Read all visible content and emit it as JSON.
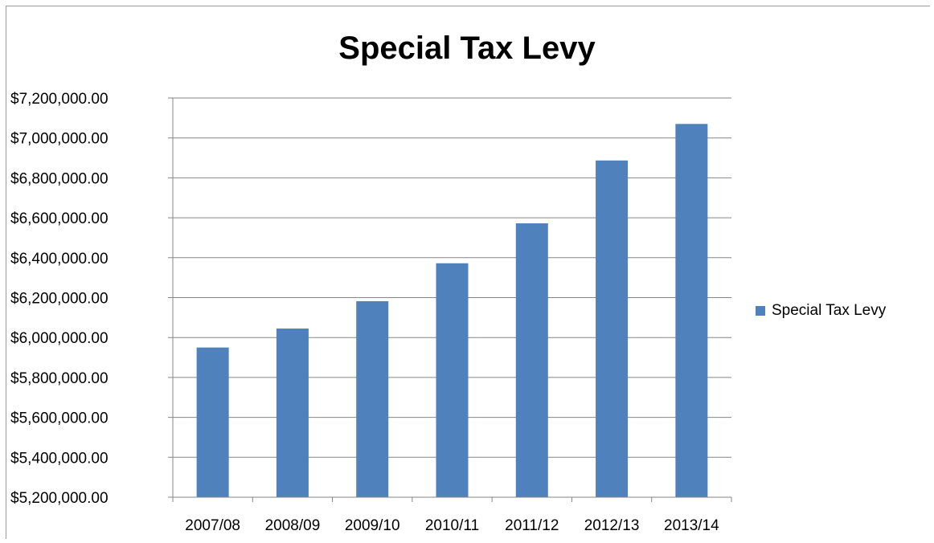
{
  "chart_data": {
    "type": "bar",
    "title": "Special Tax Levy",
    "categories": [
      "2007/08",
      "2008/09",
      "2009/10",
      "2010/11",
      "2011/12",
      "2012/13",
      "2013/14"
    ],
    "series": [
      {
        "name": "Special Tax Levy",
        "values": [
          5950000,
          6045000,
          6182000,
          6372000,
          6572000,
          6887000,
          7070000
        ]
      }
    ],
    "ylim": [
      5200000,
      7200000
    ],
    "yticks": [
      "$5,200,000.00",
      "$5,400,000.00",
      "$5,600,000.00",
      "$5,800,000.00",
      "$6,000,000.00",
      "$6,200,000.00",
      "$6,400,000.00",
      "$6,600,000.00",
      "$6,800,000.00",
      "$7,000,000.00",
      "$7,200,000.00"
    ],
    "ytick_values": [
      5200000,
      5400000,
      5600000,
      5800000,
      6000000,
      6200000,
      6400000,
      6600000,
      6800000,
      7000000,
      7200000
    ],
    "grid": true,
    "legend_position": "right",
    "colors": {
      "bar": "#4F81BD",
      "grid": "#868686",
      "axis": "#868686"
    }
  }
}
